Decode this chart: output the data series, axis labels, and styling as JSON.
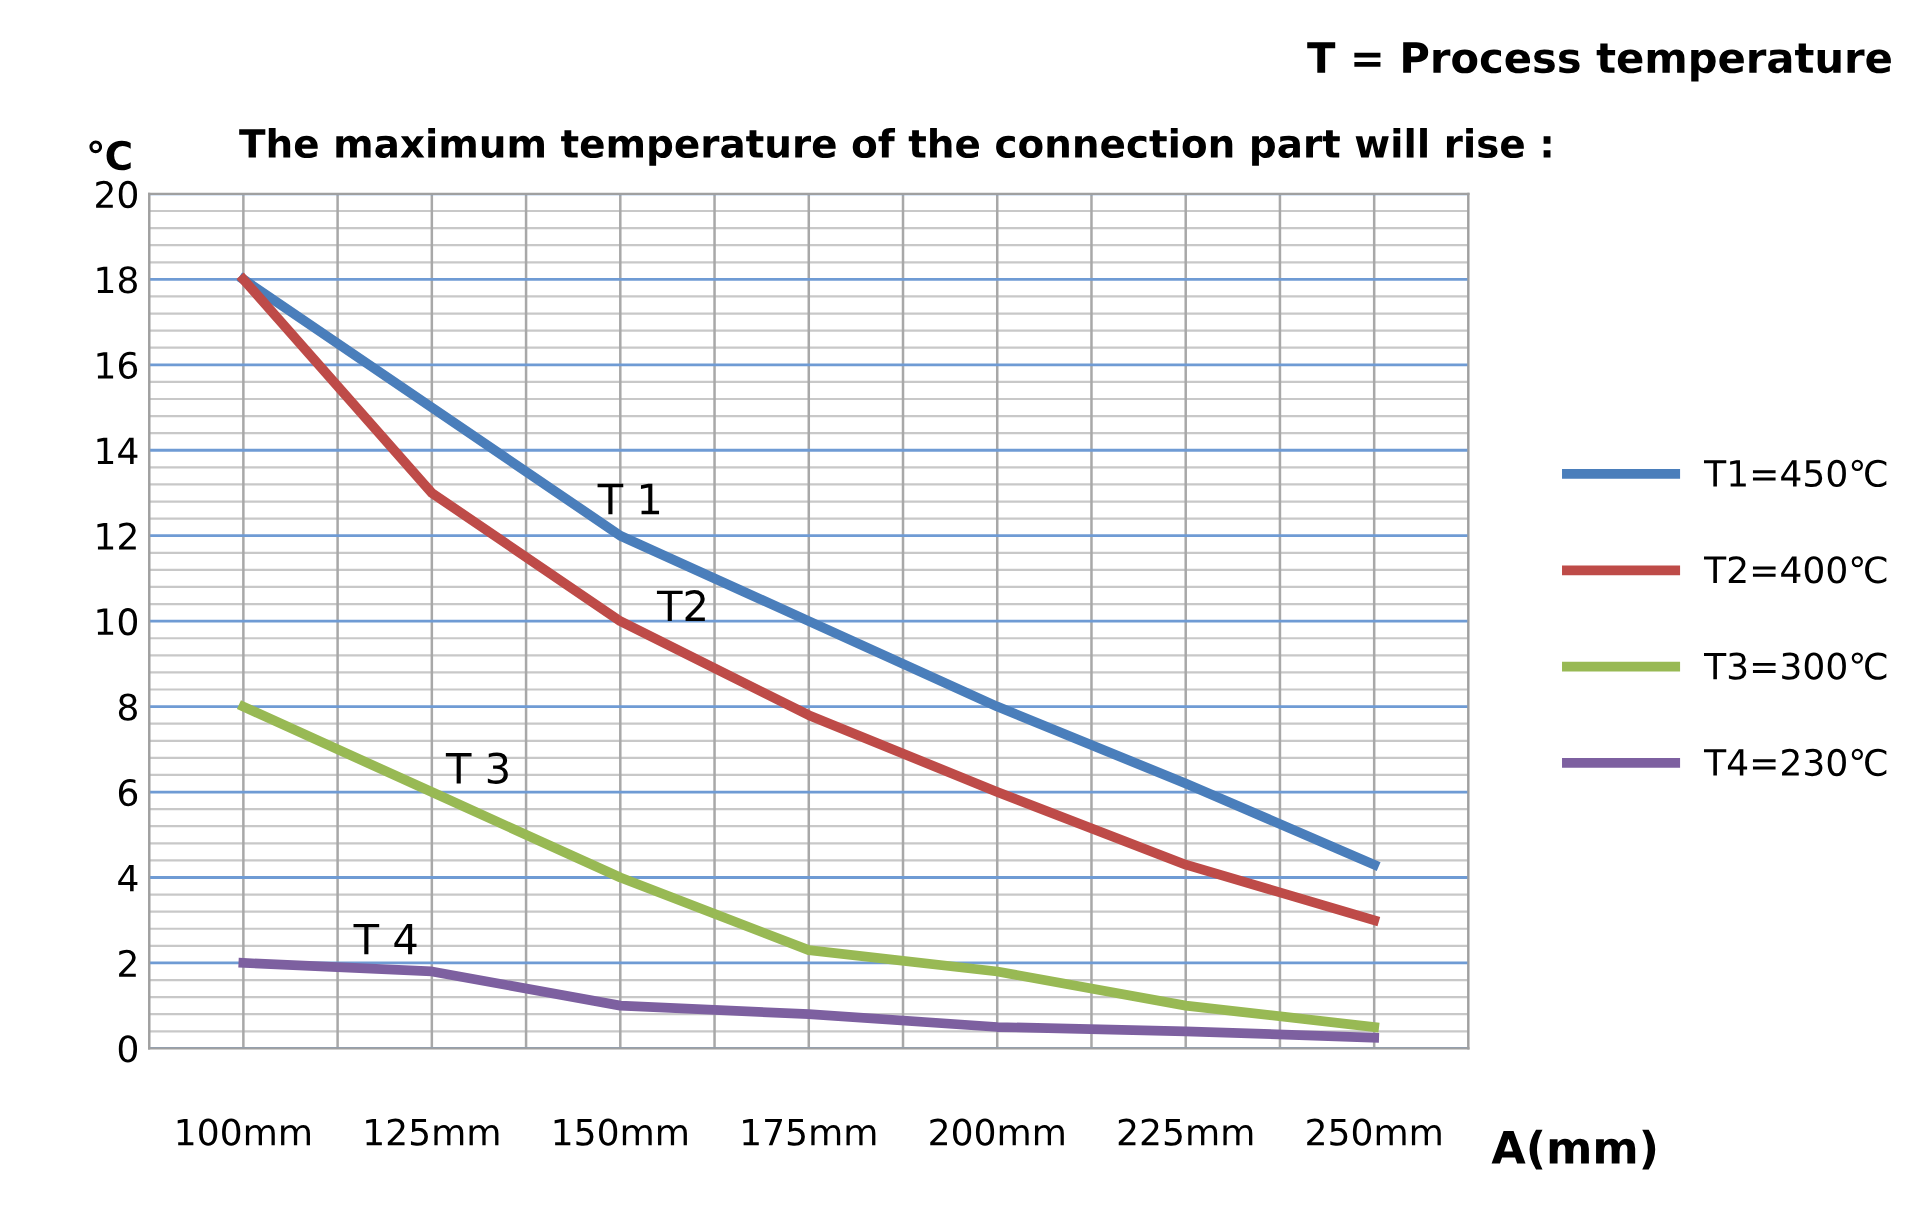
{
  "chart_data": {
    "type": "line",
    "title": "T = Process temperature",
    "subtitle": "The maximum temperature of the connection part will rise :",
    "ylabel": "℃",
    "xlabel": "A(mm)",
    "categories": [
      "100mm",
      "125mm",
      "150mm",
      "175mm",
      "200mm",
      "225mm",
      "250mm"
    ],
    "series": [
      {
        "name": "T1=450℃",
        "color": "#4a7ebb",
        "values": [
          18,
          15,
          12,
          10,
          8,
          6.2,
          4.3
        ]
      },
      {
        "name": "T2=400℃",
        "color": "#be4b48",
        "values": [
          18,
          13,
          10,
          7.8,
          6,
          4.3,
          3
        ]
      },
      {
        "name": "T3=300℃",
        "color": "#98b954",
        "values": [
          8,
          6,
          4,
          2.3,
          1.8,
          1,
          0.5
        ]
      },
      {
        "name": "T4=230℃",
        "color": "#7d60a0",
        "values": [
          2,
          1.8,
          1,
          0.8,
          0.5,
          0.4,
          0.25
        ]
      }
    ],
    "annotations": [
      "T 1",
      "T2",
      "T 3",
      "T 4"
    ],
    "ylim": [
      0,
      20
    ],
    "yticks": [
      0,
      2,
      4,
      6,
      8,
      10,
      12,
      14,
      16,
      18,
      20
    ],
    "grid": true,
    "legend": "right",
    "marker": "none",
    "line_style": "solid"
  }
}
